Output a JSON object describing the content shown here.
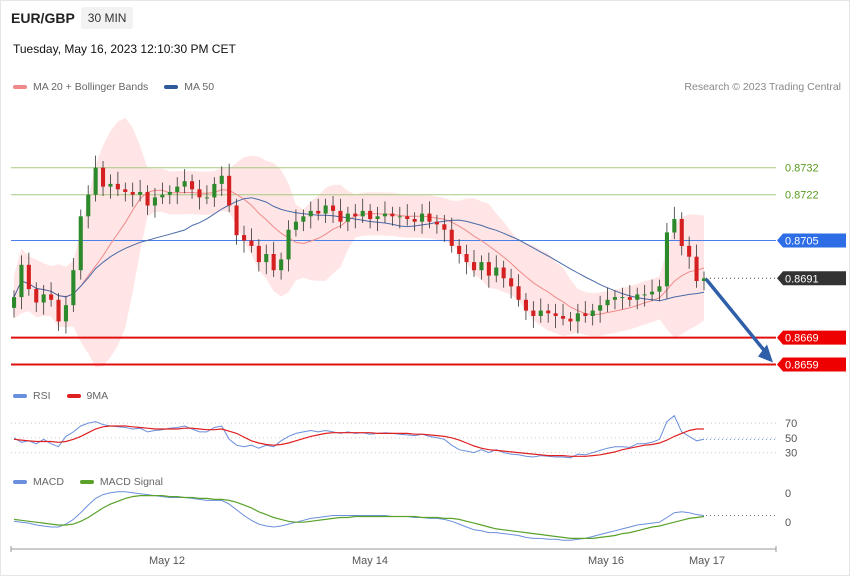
{
  "header": {
    "pair": "EUR/GBP",
    "timeframe": "30 MIN",
    "datetime": "Tuesday, May 16, 2023 12:10:30 PM CET"
  },
  "legend": {
    "price": [
      "MA 20 + Bollinger Bands",
      "MA 50"
    ],
    "rsi": [
      "RSI",
      "9MA"
    ],
    "macd": [
      "MACD",
      "MACD Signal"
    ]
  },
  "credit": "Research © 2023 Trading Central",
  "colors": {
    "bb": "#ffcfcf",
    "ma20": "#f08a8a",
    "ma50": "#4a6aa8",
    "up": "#2c8a2c",
    "down": "#d42020",
    "green_line": "#a8c880",
    "blue_line": "#4a7ee8",
    "red_line": "#e01010",
    "arrow": "#2e5fa8",
    "rsi": "#6a8fdc",
    "rsi9": "#e02020",
    "macd": "#6a8fdc",
    "signal": "#5aa22a"
  },
  "chart_data": {
    "type": "candlestick",
    "y_range": [
      0.8654,
      0.8746
    ],
    "levels": [
      {
        "value": 0.8732,
        "label": "0.8732",
        "kind": "green"
      },
      {
        "value": 0.8722,
        "label": "0.8722",
        "kind": "green"
      },
      {
        "value": 0.8705,
        "label": "0.8705",
        "kind": "blue"
      },
      {
        "value": 0.8691,
        "label": "0.8691",
        "kind": "current"
      },
      {
        "value": 0.8669,
        "label": "0.8669",
        "kind": "red"
      },
      {
        "value": 0.8659,
        "label": "0.8659",
        "kind": "red"
      }
    ],
    "x_ticks": [
      "May 12",
      "May 14",
      "May 16",
      "May 17"
    ],
    "rsi_ticks": [
      "70",
      "50",
      "30"
    ],
    "macd_ticks": [
      "0",
      "0"
    ],
    "price_closes": [
      0.8684,
      0.8696,
      0.8687,
      0.8682,
      0.8685,
      0.8683,
      0.8675,
      0.8681,
      0.8694,
      0.8714,
      0.8722,
      0.8732,
      0.8725,
      0.8726,
      0.8724,
      0.8723,
      0.8722,
      0.8723,
      0.8718,
      0.8721,
      0.8722,
      0.8723,
      0.8725,
      0.8727,
      0.8724,
      0.8721,
      0.8721,
      0.8726,
      0.8729,
      0.8718,
      0.8707,
      0.8705,
      0.8703,
      0.8697,
      0.87,
      0.8694,
      0.8698,
      0.8709,
      0.8712,
      0.8714,
      0.8716,
      0.8715,
      0.8718,
      0.8716,
      0.8712,
      0.8715,
      0.8714,
      0.8716,
      0.8713,
      0.8714,
      0.8715,
      0.8714,
      0.8714,
      0.8713,
      0.8712,
      0.8715,
      0.8712,
      0.8711,
      0.8709,
      0.8703,
      0.87,
      0.8697,
      0.8694,
      0.8697,
      0.8692,
      0.8695,
      0.8691,
      0.8688,
      0.8683,
      0.8679,
      0.8677,
      0.8679,
      0.8678,
      0.8677,
      0.8676,
      0.8675,
      0.8678,
      0.8677,
      0.8679,
      0.8681,
      0.8683,
      0.8684,
      0.8684,
      0.8683,
      0.8685,
      0.8685,
      0.8686,
      0.8688,
      0.8708,
      0.8713,
      0.8703,
      0.8699,
      0.869,
      0.8691
    ],
    "rsi_values": [
      50,
      44,
      46,
      42,
      48,
      42,
      38,
      52,
      58,
      66,
      70,
      72,
      68,
      66,
      65,
      64,
      62,
      63,
      58,
      60,
      61,
      63,
      64,
      66,
      62,
      58,
      58,
      64,
      66,
      48,
      40,
      38,
      40,
      36,
      40,
      38,
      46,
      52,
      56,
      58,
      60,
      58,
      60,
      58,
      56,
      58,
      56,
      57,
      55,
      56,
      57,
      56,
      55,
      54,
      53,
      55,
      52,
      50,
      48,
      40,
      34,
      32,
      30,
      34,
      30,
      34,
      30,
      28,
      27,
      25,
      24,
      26,
      25,
      24,
      24,
      23,
      28,
      27,
      30,
      33,
      36,
      38,
      38,
      37,
      42,
      42,
      44,
      48,
      72,
      80,
      58,
      52,
      46,
      48
    ],
    "rsi9_values": [
      48,
      47,
      46,
      45,
      45,
      45,
      44,
      45,
      48,
      52,
      57,
      62,
      65,
      66,
      66,
      66,
      65,
      64,
      63,
      62,
      62,
      62,
      62,
      63,
      63,
      62,
      61,
      61,
      62,
      59,
      56,
      51,
      46,
      43,
      41,
      40,
      41,
      43,
      46,
      49,
      52,
      54,
      56,
      57,
      57,
      57,
      57,
      57,
      57,
      56,
      56,
      56,
      56,
      56,
      55,
      55,
      54,
      53,
      52,
      50,
      47,
      43,
      39,
      36,
      34,
      33,
      32,
      31,
      30,
      29,
      28,
      27,
      26,
      26,
      26,
      25,
      25,
      25,
      26,
      27,
      29,
      31,
      34,
      36,
      38,
      40,
      41,
      43,
      47,
      52,
      56,
      60,
      62,
      62
    ],
    "macd_values": [
      0,
      -1,
      -2,
      -4,
      -5,
      -6,
      -6,
      -3,
      2,
      9,
      17,
      24,
      28,
      30,
      31,
      31,
      30,
      29,
      28,
      27,
      26,
      25,
      25,
      25,
      24,
      23,
      22,
      22,
      22,
      18,
      12,
      6,
      1,
      -3,
      -5,
      -6,
      -5,
      -3,
      -1,
      1,
      3,
      4,
      5,
      6,
      6,
      6,
      6,
      6,
      6,
      6,
      6,
      5,
      5,
      5,
      4,
      4,
      3,
      3,
      2,
      0,
      -3,
      -6,
      -9,
      -10,
      -12,
      -12,
      -13,
      -14,
      -15,
      -17,
      -18,
      -18,
      -19,
      -19,
      -20,
      -20,
      -19,
      -18,
      -16,
      -14,
      -12,
      -10,
      -8,
      -6,
      -4,
      -3,
      -2,
      -1,
      4,
      9,
      10,
      9,
      7,
      6
    ],
    "signal_values": [
      2,
      1,
      0,
      -1,
      -2,
      -3,
      -4,
      -4,
      -3,
      0,
      4,
      9,
      14,
      18,
      21,
      24,
      26,
      27,
      27,
      27,
      27,
      26,
      26,
      25,
      25,
      24,
      24,
      23,
      23,
      22,
      20,
      17,
      14,
      10,
      7,
      4,
      2,
      0,
      -1,
      -1,
      0,
      1,
      2,
      3,
      4,
      4,
      5,
      5,
      5,
      5,
      5,
      5,
      5,
      5,
      5,
      4,
      4,
      4,
      3,
      3,
      2,
      0,
      -2,
      -4,
      -6,
      -8,
      -9,
      -10,
      -11,
      -12,
      -13,
      -14,
      -15,
      -16,
      -17,
      -18,
      -18,
      -18,
      -18,
      -17,
      -16,
      -15,
      -13,
      -12,
      -10,
      -8,
      -6,
      -5,
      -3,
      -1,
      1,
      3,
      4,
      5
    ]
  }
}
